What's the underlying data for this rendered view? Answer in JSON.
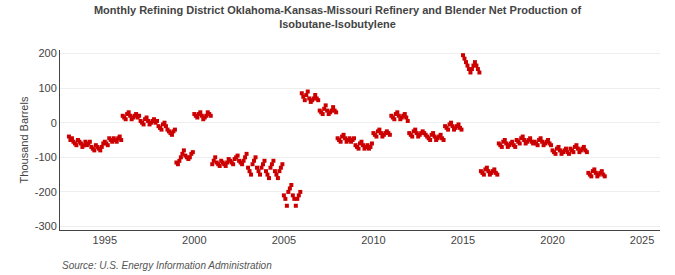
{
  "chart_data": {
    "type": "scatter",
    "title": "Monthly Refining District Oklahoma-Kansas-Missouri Refinery and Blender Net Production of\nIsobutane-Isobutylene",
    "ylabel": "Thousand Barrels",
    "annotations": [
      "Source: U.S. Energy Information Administration"
    ],
    "color": "#cc0000",
    "marker": "square",
    "grid": "y",
    "xlim": [
      1992.5,
      2026
    ],
    "ylim": [
      -310,
      210
    ],
    "xticks": [
      1995,
      2000,
      2005,
      2010,
      2015,
      2020,
      2025
    ],
    "yticks": [
      -300,
      -200,
      -100,
      0,
      100,
      200
    ],
    "x": [
      1993,
      1993.083333,
      1993.166667,
      1993.25,
      1993.333333,
      1993.416667,
      1993.5,
      1993.583333,
      1993.666667,
      1993.75,
      1993.833333,
      1993.916667,
      1994,
      1994.083333,
      1994.166667,
      1994.25,
      1994.333333,
      1994.416667,
      1994.5,
      1994.583333,
      1994.666667,
      1994.75,
      1994.833333,
      1994.916667,
      1995,
      1995.083333,
      1995.166667,
      1995.25,
      1995.333333,
      1995.416667,
      1995.5,
      1995.583333,
      1995.666667,
      1995.75,
      1995.833333,
      1995.916667,
      1996,
      1996.083333,
      1996.166667,
      1996.25,
      1996.333333,
      1996.416667,
      1996.5,
      1996.583333,
      1996.666667,
      1996.75,
      1996.833333,
      1996.916667,
      1997,
      1997.083333,
      1997.166667,
      1997.25,
      1997.333333,
      1997.416667,
      1997.5,
      1997.583333,
      1997.666667,
      1997.75,
      1997.833333,
      1997.916667,
      1998,
      1998.083333,
      1998.166667,
      1998.25,
      1998.333333,
      1998.416667,
      1998.5,
      1998.583333,
      1998.666667,
      1998.75,
      1998.833333,
      1998.916667,
      1999,
      1999.083333,
      1999.166667,
      1999.25,
      1999.333333,
      1999.416667,
      1999.5,
      1999.583333,
      1999.666667,
      1999.75,
      1999.833333,
      1999.916667,
      2000,
      2000.083333,
      2000.166667,
      2000.25,
      2000.333333,
      2000.416667,
      2000.5,
      2000.583333,
      2000.666667,
      2000.75,
      2000.833333,
      2000.916667,
      2001,
      2001.083333,
      2001.166667,
      2001.25,
      2001.333333,
      2001.416667,
      2001.5,
      2001.583333,
      2001.666667,
      2001.75,
      2001.833333,
      2001.916667,
      2002,
      2002.083333,
      2002.166667,
      2002.25,
      2002.333333,
      2002.416667,
      2002.5,
      2002.583333,
      2002.666667,
      2002.75,
      2002.833333,
      2002.916667,
      2003,
      2003.083333,
      2003.166667,
      2003.25,
      2003.333333,
      2003.416667,
      2003.5,
      2003.583333,
      2003.666667,
      2003.75,
      2003.833333,
      2003.916667,
      2004,
      2004.083333,
      2004.166667,
      2004.25,
      2004.333333,
      2004.416667,
      2004.5,
      2004.583333,
      2004.666667,
      2004.75,
      2004.833333,
      2004.916667,
      2005,
      2005.083333,
      2005.166667,
      2005.25,
      2005.333333,
      2005.416667,
      2005.5,
      2005.583333,
      2005.666667,
      2005.75,
      2005.833333,
      2005.916667,
      2006,
      2006.083333,
      2006.166667,
      2006.25,
      2006.333333,
      2006.416667,
      2006.5,
      2006.583333,
      2006.666667,
      2006.75,
      2006.833333,
      2006.916667,
      2007,
      2007.083333,
      2007.166667,
      2007.25,
      2007.333333,
      2007.416667,
      2007.5,
      2007.583333,
      2007.666667,
      2007.75,
      2007.833333,
      2007.916667,
      2008,
      2008.083333,
      2008.166667,
      2008.25,
      2008.333333,
      2008.416667,
      2008.5,
      2008.583333,
      2008.666667,
      2008.75,
      2008.833333,
      2008.916667,
      2009,
      2009.083333,
      2009.166667,
      2009.25,
      2009.333333,
      2009.416667,
      2009.5,
      2009.583333,
      2009.666667,
      2009.75,
      2009.833333,
      2009.916667,
      2010,
      2010.083333,
      2010.166667,
      2010.25,
      2010.333333,
      2010.416667,
      2010.5,
      2010.583333,
      2010.666667,
      2010.75,
      2010.833333,
      2010.916667,
      2011,
      2011.083333,
      2011.166667,
      2011.25,
      2011.333333,
      2011.416667,
      2011.5,
      2011.583333,
      2011.666667,
      2011.75,
      2011.833333,
      2011.916667,
      2012,
      2012.083333,
      2012.166667,
      2012.25,
      2012.333333,
      2012.416667,
      2012.5,
      2012.583333,
      2012.666667,
      2012.75,
      2012.833333,
      2012.916667,
      2013,
      2013.083333,
      2013.166667,
      2013.25,
      2013.333333,
      2013.416667,
      2013.5,
      2013.583333,
      2013.666667,
      2013.75,
      2013.833333,
      2013.916667,
      2014,
      2014.083333,
      2014.166667,
      2014.25,
      2014.333333,
      2014.416667,
      2014.5,
      2014.583333,
      2014.666667,
      2014.75,
      2014.833333,
      2014.916667,
      2015,
      2015.083333,
      2015.166667,
      2015.25,
      2015.333333,
      2015.416667,
      2015.5,
      2015.583333,
      2015.666667,
      2015.75,
      2015.833333,
      2015.916667,
      2016,
      2016.083333,
      2016.166667,
      2016.25,
      2016.333333,
      2016.416667,
      2016.5,
      2016.583333,
      2016.666667,
      2016.75,
      2016.833333,
      2016.916667,
      2017,
      2017.083333,
      2017.166667,
      2017.25,
      2017.333333,
      2017.416667,
      2017.5,
      2017.583333,
      2017.666667,
      2017.75,
      2017.833333,
      2017.916667,
      2018,
      2018.083333,
      2018.166667,
      2018.25,
      2018.333333,
      2018.416667,
      2018.5,
      2018.583333,
      2018.666667,
      2018.75,
      2018.833333,
      2018.916667,
      2019,
      2019.083333,
      2019.166667,
      2019.25,
      2019.333333,
      2019.416667,
      2019.5,
      2019.583333,
      2019.666667,
      2019.75,
      2019.833333,
      2019.916667,
      2020,
      2020.083333,
      2020.166667,
      2020.25,
      2020.333333,
      2020.416667,
      2020.5,
      2020.583333,
      2020.666667,
      2020.75,
      2020.833333,
      2020.916667,
      2021,
      2021.083333,
      2021.166667,
      2021.25,
      2021.333333,
      2021.416667,
      2021.5,
      2021.583333,
      2021.666667,
      2021.75,
      2021.833333,
      2021.916667,
      2022,
      2022.083333,
      2022.166667,
      2022.25,
      2022.333333,
      2022.416667,
      2022.5,
      2022.583333,
      2022.666667,
      2022.75,
      2022.833333,
      2022.916667
    ],
    "values": [
      -40,
      -50,
      -45,
      -55,
      -60,
      -65,
      -50,
      -55,
      -60,
      -70,
      -65,
      -55,
      -65,
      -60,
      -55,
      -70,
      -75,
      -80,
      -65,
      -70,
      -75,
      -80,
      -70,
      -60,
      -55,
      -60,
      -65,
      -45,
      -50,
      -55,
      -45,
      -50,
      -55,
      -45,
      -40,
      -50,
      20,
      15,
      10,
      25,
      30,
      20,
      10,
      15,
      20,
      25,
      15,
      20,
      5,
      0,
      -5,
      10,
      15,
      5,
      -5,
      0,
      5,
      10,
      0,
      5,
      -10,
      -15,
      -20,
      -5,
      0,
      -10,
      -20,
      -25,
      -30,
      -35,
      -25,
      -20,
      -115,
      -120,
      -110,
      -100,
      -90,
      -80,
      -95,
      -100,
      -105,
      -100,
      -90,
      -85,
      25,
      20,
      15,
      25,
      30,
      20,
      10,
      15,
      20,
      30,
      25,
      20,
      -120,
      -110,
      -100,
      -115,
      -120,
      -125,
      -110,
      -115,
      -120,
      -125,
      -115,
      -105,
      -110,
      -115,
      -120,
      -105,
      -100,
      -95,
      -110,
      -115,
      -120,
      -110,
      -100,
      -90,
      -130,
      -140,
      -150,
      -120,
      -110,
      -100,
      -130,
      -140,
      -150,
      -130,
      -120,
      -110,
      -140,
      -150,
      -160,
      -130,
      -120,
      -110,
      -140,
      -150,
      -160,
      -140,
      -130,
      -120,
      -210,
      -220,
      -240,
      -200,
      -190,
      -180,
      -210,
      -220,
      -240,
      -220,
      -210,
      -200,
      85,
      75,
      65,
      80,
      90,
      70,
      60,
      65,
      70,
      80,
      70,
      65,
      35,
      30,
      25,
      40,
      50,
      35,
      25,
      30,
      35,
      45,
      35,
      30,
      -45,
      -50,
      -55,
      -40,
      -35,
      -45,
      -55,
      -50,
      -45,
      -55,
      -50,
      -45,
      -65,
      -70,
      -75,
      -60,
      -55,
      -65,
      -75,
      -70,
      -65,
      -75,
      -70,
      -60,
      -30,
      -35,
      -40,
      -25,
      -20,
      -30,
      -40,
      -35,
      -30,
      -25,
      -30,
      -35,
      20,
      15,
      10,
      25,
      30,
      20,
      10,
      15,
      20,
      25,
      15,
      5,
      -30,
      -35,
      -40,
      -25,
      -20,
      -30,
      -40,
      -35,
      -30,
      -25,
      -30,
      -35,
      -40,
      -45,
      -50,
      -35,
      -30,
      -40,
      -50,
      -45,
      -40,
      -35,
      -45,
      -50,
      -10,
      -15,
      -20,
      -5,
      0,
      -10,
      -20,
      -15,
      -10,
      -5,
      -15,
      -20,
      195,
      185,
      175,
      165,
      155,
      145,
      155,
      165,
      175,
      165,
      155,
      145,
      -140,
      -145,
      -150,
      -135,
      -130,
      -140,
      -150,
      -145,
      -140,
      -135,
      -145,
      -150,
      -60,
      -65,
      -70,
      -55,
      -50,
      -60,
      -70,
      -65,
      -60,
      -55,
      -65,
      -70,
      -50,
      -55,
      -60,
      -45,
      -40,
      -50,
      -60,
      -55,
      -50,
      -45,
      -55,
      -60,
      -55,
      -60,
      -65,
      -50,
      -45,
      -55,
      -65,
      -60,
      -55,
      -50,
      -60,
      -65,
      -80,
      -85,
      -90,
      -75,
      -70,
      -80,
      -90,
      -85,
      -80,
      -75,
      -85,
      -90,
      -75,
      -80,
      -85,
      -70,
      -65,
      -75,
      -85,
      -80,
      -75,
      -70,
      -80,
      -85,
      -145,
      -150,
      -155,
      -140,
      -135,
      -145,
      -155,
      -150,
      -145,
      -140,
      -150,
      -155
    ]
  }
}
